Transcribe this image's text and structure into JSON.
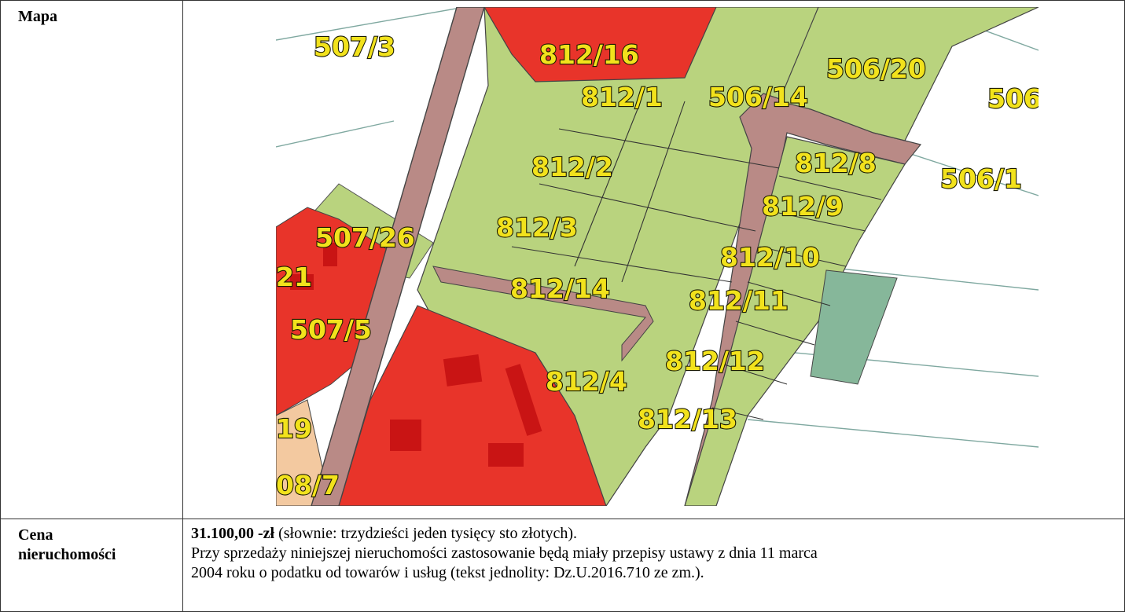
{
  "rows": {
    "map": {
      "label": "Mapa"
    },
    "price": {
      "label_line1": "Cena",
      "label_line2_bold": "nieruchomo",
      "label_line2_rest": "ści",
      "amount": "31.100,00 -zł",
      "amount_words": " (słownie: trzydzieści jeden tysięcy sto złotych).",
      "vat_note_line1": "Przy sprzedaży niniejszej nieruchomości zastosowanie będą miały przepisy ustawy z dnia 11 marca",
      "vat_note_line2": "2004 roku o podatku od towarów i usług (tekst jednolity: Dz.U.2016.710 ze zm.)."
    }
  },
  "map": {
    "colors": {
      "residential": "#e8342a",
      "building": "#c91414",
      "agricultural": "#b9d37e",
      "road": "#b98a86",
      "green_area": "#86b79a",
      "background": "#ffffff"
    },
    "parcels": [
      "507/3",
      "812/16",
      "506/20",
      "812/1",
      "506/14",
      "506",
      "812/2",
      "812/8",
      "506/1",
      "812/9",
      "507/26",
      "812/3",
      "812/10",
      "21",
      "812/14",
      "812/11",
      "507/5",
      "812/12",
      "812/4",
      "19",
      "812/13",
      "08/7"
    ]
  }
}
